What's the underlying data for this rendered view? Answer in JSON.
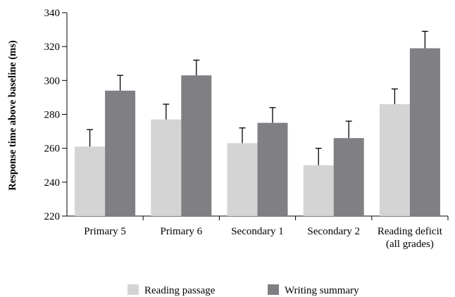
{
  "chart_data": {
    "type": "bar",
    "title": "",
    "xlabel": "",
    "ylabel": "Response time above baseline (ms)",
    "ylim": [
      220,
      340
    ],
    "yticks": [
      220,
      240,
      260,
      280,
      300,
      320,
      340
    ],
    "grid": false,
    "legend_position": "bottom-center",
    "categories": [
      [
        "Primary 5"
      ],
      [
        "Primary 6"
      ],
      [
        "Secondary 1"
      ],
      [
        "Secondary 2"
      ],
      [
        "Reading deficit",
        "(all grades)"
      ]
    ],
    "series": [
      {
        "name": "Reading passage",
        "color": "#d4d4d4",
        "values": [
          261,
          277,
          263,
          250,
          286
        ],
        "error_upper": [
          271,
          286,
          272,
          260,
          295
        ]
      },
      {
        "name": "Writing summary",
        "color": "#808084",
        "values": [
          294,
          303,
          275,
          266,
          319
        ],
        "error_upper": [
          303,
          312,
          284,
          276,
          329
        ]
      }
    ]
  }
}
